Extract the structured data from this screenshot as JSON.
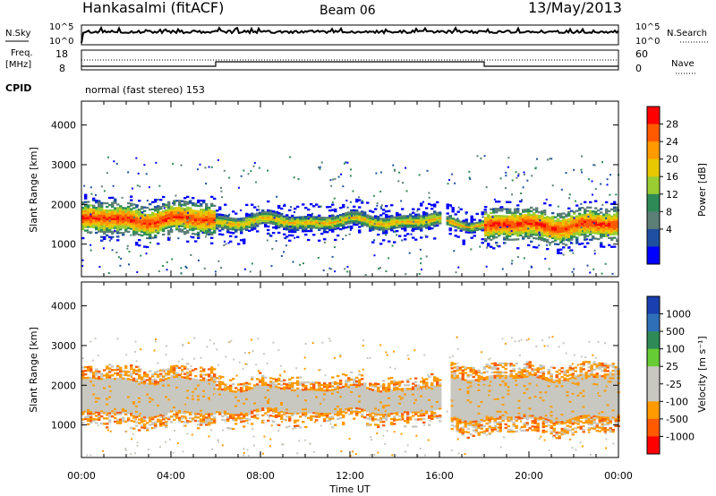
{
  "header": {
    "station": "Hankasalmi (fitACF)",
    "beam": "Beam 06",
    "date": "13/May/2013"
  },
  "top_panels": {
    "nsky_label": "N.Sky",
    "nsky_tick_top": "10^5",
    "nsky_tick_bottom": "10^0",
    "nsearch_label": "N.Search",
    "freq_label_line1": "Freq.",
    "freq_label_line2": "[MHz]",
    "freq_tick_top": "18",
    "freq_tick_bottom": "8",
    "nave_label": "Nave",
    "nave_tick_top": "60",
    "nave_tick_bottom": "0",
    "cpid_label": "CPID",
    "cpid_text": "normal (fast stereo) 153"
  },
  "chart_data": [
    {
      "type": "heatmap",
      "name": "power",
      "ylabel": "Slant Range [km]",
      "ylim": [
        180,
        4600
      ],
      "yticks": [
        "1000",
        "2000",
        "3000",
        "4000"
      ],
      "xlim_hours": [
        0,
        24
      ],
      "colorbar": {
        "label": "Power [dB]",
        "ticks": [
          "28",
          "24",
          "20",
          "16",
          "12",
          "8",
          "4"
        ],
        "colors": [
          "#ff0000",
          "#ff5a00",
          "#ff9a00",
          "#e8c800",
          "#9acd32",
          "#2e8b57",
          "#5c7f76",
          "#1e4fa0",
          "#0000ff"
        ]
      },
      "bands": [
        {
          "t0": 0.0,
          "t1": 6.0,
          "center": 1600,
          "width": 500,
          "level": "strong"
        },
        {
          "t0": 6.0,
          "t1": 16.0,
          "center": 1550,
          "width": 280,
          "level": "medium"
        },
        {
          "t0": 16.3,
          "t1": 18.0,
          "center": 1500,
          "width": 200,
          "level": "medium"
        },
        {
          "t0": 18.0,
          "t1": 24.0,
          "center": 1450,
          "width": 500,
          "level": "strong"
        }
      ]
    },
    {
      "type": "heatmap",
      "name": "velocity",
      "ylabel": "Slant Range [km]",
      "xlabel": "Time UT",
      "ylim": [
        180,
        4600
      ],
      "yticks": [
        "1000",
        "2000",
        "3000",
        "4000"
      ],
      "xticks": [
        "00:00",
        "04:00",
        "08:00",
        "12:00",
        "16:00",
        "20:00",
        "00:00"
      ],
      "colorbar": {
        "label": "Velocity [m s⁻¹]",
        "ticks": [
          "1000",
          "500",
          "100",
          "25",
          "-25",
          "-100",
          "-500",
          "-1000"
        ],
        "colors": [
          "#1a3fb0",
          "#2f6fb8",
          "#2e8b57",
          "#66cc33",
          "#c8c8c0",
          "#c8c8c0",
          "#ff9a00",
          "#ff5a00",
          "#ff0000"
        ]
      },
      "bands": [
        {
          "t0": 0.0,
          "t1": 6.0,
          "center": 1700,
          "width": 900,
          "level": "ground"
        },
        {
          "t0": 6.0,
          "t1": 16.0,
          "center": 1600,
          "width": 600,
          "level": "ground"
        },
        {
          "t0": 16.5,
          "t1": 24.0,
          "center": 1650,
          "width": 1100,
          "level": "ground"
        }
      ]
    }
  ]
}
